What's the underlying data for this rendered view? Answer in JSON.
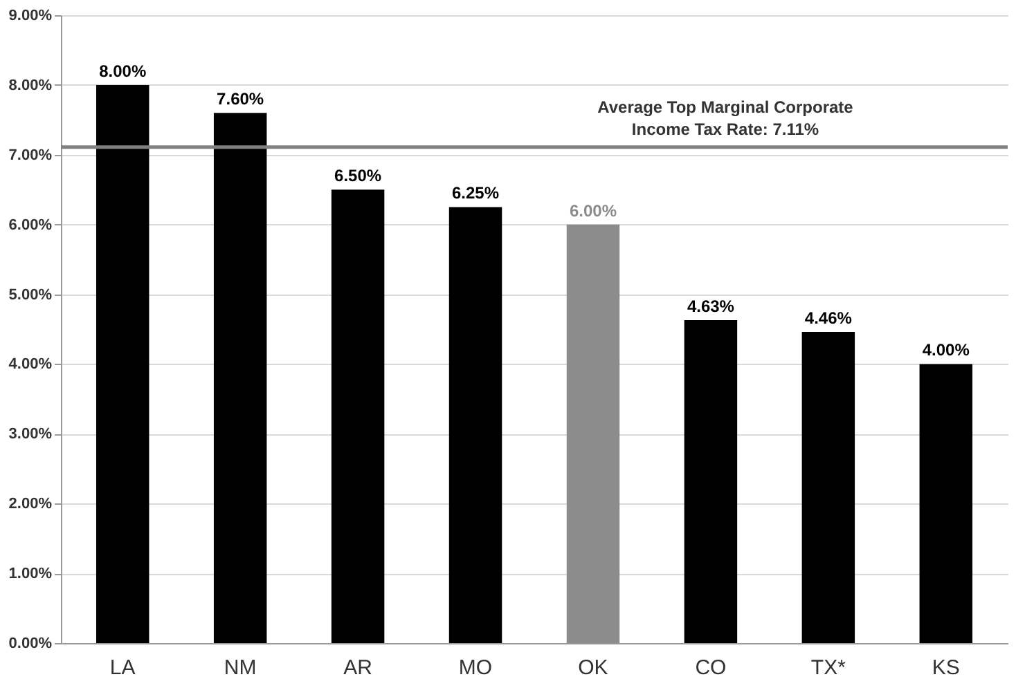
{
  "chart_data": {
    "type": "bar",
    "categories": [
      "LA",
      "NM",
      "AR",
      "MO",
      "OK",
      "CO",
      "TX*",
      "KS"
    ],
    "values": [
      8.0,
      7.6,
      6.5,
      6.25,
      6.0,
      4.63,
      4.46,
      4.0
    ],
    "colors": [
      "#000000",
      "#000000",
      "#000000",
      "#000000",
      "#8c8c8c",
      "#000000",
      "#000000",
      "#000000"
    ],
    "value_labels": [
      "8.00%",
      "7.60%",
      "6.50%",
      "6.25%",
      "6.00%",
      "4.63%",
      "4.46%",
      "4.00%"
    ],
    "ylim": [
      0,
      9
    ],
    "yticks": [
      {
        "value": 0,
        "label": "0.00%"
      },
      {
        "value": 1,
        "label": "1.00%"
      },
      {
        "value": 2,
        "label": "2.00%"
      },
      {
        "value": 3,
        "label": "3.00%"
      },
      {
        "value": 4,
        "label": "4.00%"
      },
      {
        "value": 5,
        "label": "5.00%"
      },
      {
        "value": 6,
        "label": "6.00%"
      },
      {
        "value": 7,
        "label": "7.00%"
      },
      {
        "value": 8,
        "label": "8.00%"
      },
      {
        "value": 9,
        "label": "9.00%"
      }
    ],
    "ref_lines": [
      {
        "axis": "y",
        "value": 7.11,
        "label": "Average Top Marginal Corporate\nIncome Tax Rate: 7.11%",
        "color": "#808080"
      }
    ],
    "grid": "y"
  }
}
